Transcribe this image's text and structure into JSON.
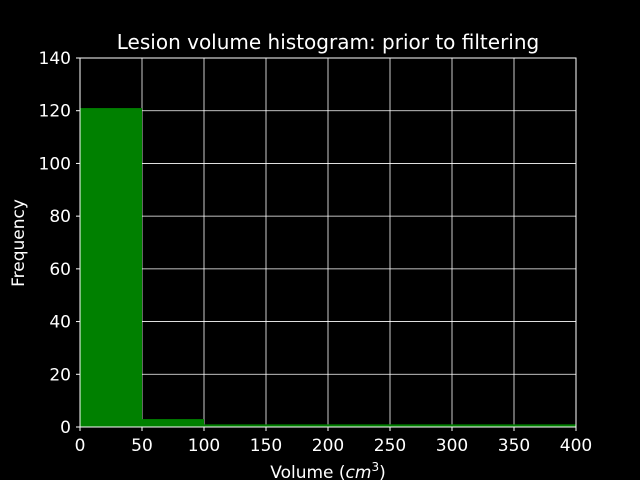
{
  "chart_data": {
    "type": "bar",
    "title": "Lesion volume histogram: prior to filtering",
    "xlabel": "Volume (",
    "xlabel_unit": "cm",
    "xlabel_exp": "3",
    "xlabel_close": ")",
    "ylabel": "Frequency",
    "xlim": [
      0,
      400
    ],
    "ylim": [
      0,
      140
    ],
    "xticks": [
      0,
      50,
      100,
      150,
      200,
      250,
      300,
      350,
      400
    ],
    "yticks": [
      0,
      20,
      40,
      60,
      80,
      100,
      120,
      140
    ],
    "grid": true,
    "bins": [
      {
        "start": 0,
        "end": 50,
        "count": 121
      },
      {
        "start": 50,
        "end": 100,
        "count": 3
      },
      {
        "start": 100,
        "end": 150,
        "count": 1
      },
      {
        "start": 150,
        "end": 200,
        "count": 1
      },
      {
        "start": 200,
        "end": 250,
        "count": 1
      },
      {
        "start": 250,
        "end": 300,
        "count": 1
      },
      {
        "start": 300,
        "end": 350,
        "count": 1
      },
      {
        "start": 350,
        "end": 400,
        "count": 1
      }
    ],
    "bar_color": "#008000",
    "background_color": "#000000",
    "grid_color": "#ffffff",
    "text_color": "#ffffff"
  }
}
